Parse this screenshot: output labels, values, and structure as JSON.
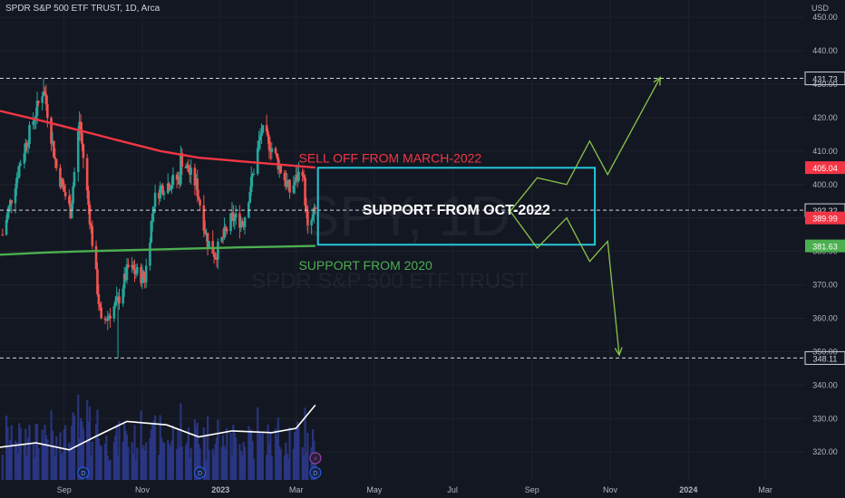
{
  "header": {
    "title": "SPDR S&P 500 ETF TRUST, 1D, Arca",
    "currency": "USD"
  },
  "watermark": {
    "symbol": "SPY, 1D",
    "name": "SPDR S&P 500 ETF TRUST"
  },
  "colors": {
    "background": "#131722",
    "grid": "#1e222d",
    "up": "#26a69a",
    "down": "#ef5350",
    "red_ma": "#f23645",
    "green_ma": "#4caf50",
    "box": "#26c6da",
    "arrow": "#8bc34a",
    "volume": "#2d3a8c",
    "vol_line": "#ffffff",
    "event_icon": "#2962ff",
    "split_icon": "#ab47bc"
  },
  "chart_data": {
    "type": "candlestick",
    "yaxis": {
      "ticks": [
        "450.00",
        "440.00",
        "430.00",
        "420.00",
        "410.00",
        "400.00",
        "390.00",
        "380.00",
        "370.00",
        "360.00",
        "350.00",
        "340.00",
        "330.00",
        "320.00"
      ],
      "tick_values": [
        450,
        440,
        430,
        420,
        410,
        400,
        390,
        380,
        370,
        360,
        350,
        340,
        330,
        320
      ],
      "ylim": [
        316,
        453
      ]
    },
    "xaxis": {
      "labels": [
        "Sep",
        "Nov",
        "2023",
        "Mar",
        "May",
        "Jul",
        "Sep",
        "Nov",
        "2024",
        "Mar"
      ],
      "label_dates": [
        "2022-09-01",
        "2022-11-01",
        "2023-01-01",
        "2023-03-01",
        "2023-05-01",
        "2023-07-01",
        "2023-09-01",
        "2023-11-01",
        "2024-01-01",
        "2024-03-01"
      ],
      "xlim": [
        "2022-07-13",
        "2024-04-01"
      ]
    },
    "price_series": {
      "name": "SPY",
      "dates": [
        "2022-07-15",
        "2022-07-29",
        "2022-08-16",
        "2022-08-26",
        "2022-09-06",
        "2022-09-13",
        "2022-09-30",
        "2022-10-13",
        "2022-10-21",
        "2022-11-03",
        "2022-11-10",
        "2022-11-15",
        "2022-11-30",
        "2022-12-01",
        "2022-12-13",
        "2022-12-22",
        "2022-12-28",
        "2023-01-10",
        "2023-01-19",
        "2023-02-02",
        "2023-02-10",
        "2023-02-24",
        "2023-03-06",
        "2023-03-10",
        "2023-03-16"
      ],
      "close": [
        385,
        407,
        429,
        405,
        392,
        419,
        358,
        365,
        375,
        372,
        395,
        399,
        402,
        408,
        400,
        383,
        379,
        390,
        389,
        416,
        411,
        398,
        405,
        386,
        392
      ],
      "low_min": 348.11,
      "high_max": 431.73
    },
    "moving_averages": [
      {
        "color": "red",
        "dates": [
          "2022-07-13",
          "2022-08-15",
          "2022-09-15",
          "2022-10-15",
          "2022-11-15",
          "2022-12-15",
          "2023-01-15",
          "2023-02-15",
          "2023-03-16"
        ],
        "values": [
          422,
          419,
          416,
          413,
          410,
          408,
          407,
          406,
          405.04
        ]
      },
      {
        "color": "green",
        "dates": [
          "2022-07-13",
          "2022-08-15",
          "2022-09-15",
          "2022-10-15",
          "2022-11-15",
          "2022-12-15",
          "2023-01-15",
          "2023-02-15",
          "2023-03-16"
        ],
        "values": [
          379,
          379.6,
          380.0,
          380.3,
          380.6,
          380.9,
          381.2,
          381.4,
          381.63
        ]
      }
    ],
    "horizontal_lines": [
      {
        "value": 431.73,
        "label": "431.73"
      },
      {
        "value": 392.32,
        "label": "392.32"
      },
      {
        "value": 348.11,
        "label": "348.11"
      }
    ],
    "price_labels": [
      {
        "value": 405.04,
        "label": "405.04",
        "color": "red"
      },
      {
        "value": 389.99,
        "label": "389.99",
        "color": "red"
      },
      {
        "value": 381.63,
        "label": "381.63",
        "color": "green"
      }
    ],
    "support_box": {
      "x": [
        "2023-03-18",
        "2023-10-20"
      ],
      "y": [
        382,
        405
      ],
      "label": "SUPPORT FROM OCT-2022"
    },
    "annotations": [
      {
        "text": "SELL OFF FROM MARCH-2022",
        "color": "red",
        "date": "2023-03-03",
        "value": 406.5
      },
      {
        "text": "SUPPORT FROM 2020",
        "color": "green",
        "date": "2023-03-03",
        "value": 374.5
      }
    ],
    "projections": [
      {
        "direction": "up",
        "dates": [
          "2023-08-15",
          "2023-09-05",
          "2023-09-28",
          "2023-10-16",
          "2023-10-30",
          "2023-12-10"
        ],
        "values": [
          392,
          402,
          400,
          413,
          403,
          432
        ]
      },
      {
        "direction": "down",
        "dates": [
          "2023-08-15",
          "2023-09-05",
          "2023-09-28",
          "2023-10-16",
          "2023-10-30",
          "2023-11-08"
        ],
        "values": [
          392,
          381,
          390,
          377,
          383,
          349
        ]
      }
    ],
    "volume_panel": {
      "note": "volume histogram with moving average line",
      "ma_points": [
        [
          "2022-07-13",
          0.38
        ],
        [
          "2022-08-10",
          0.43
        ],
        [
          "2022-09-05",
          0.35
        ],
        [
          "2022-09-25",
          0.5
        ],
        [
          "2022-10-20",
          0.68
        ],
        [
          "2022-11-20",
          0.64
        ],
        [
          "2022-12-15",
          0.5
        ],
        [
          "2023-01-10",
          0.57
        ],
        [
          "2023-02-10",
          0.55
        ],
        [
          "2023-03-01",
          0.6
        ],
        [
          "2023-03-16",
          0.87
        ]
      ]
    },
    "events": [
      {
        "date": "2022-09-16",
        "label": "D"
      },
      {
        "date": "2022-12-16",
        "label": "D"
      },
      {
        "date": "2023-03-16",
        "label": "D"
      },
      {
        "date": "2023-03-16",
        "label": "⚡"
      }
    ]
  }
}
